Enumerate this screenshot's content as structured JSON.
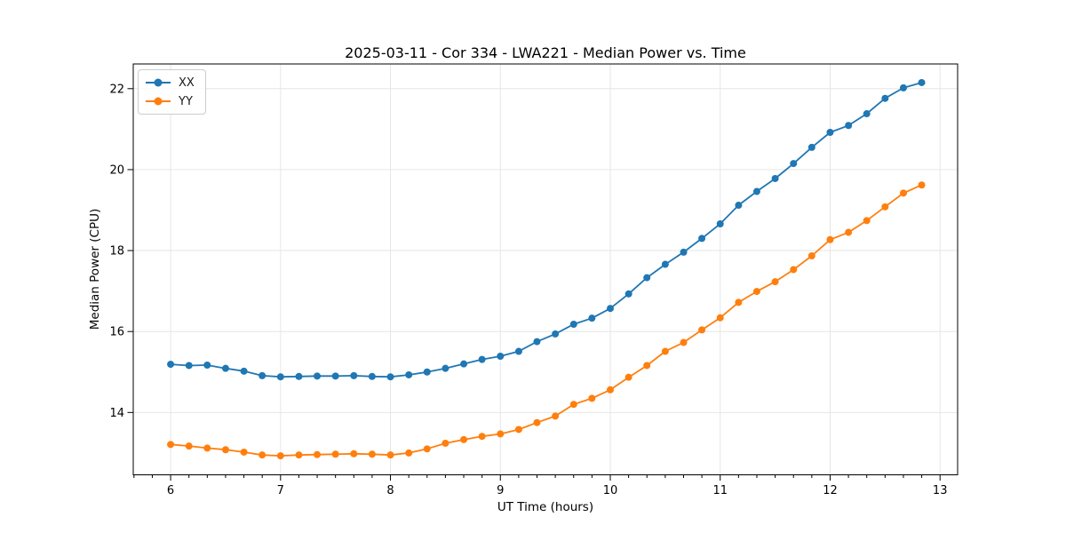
{
  "figure": {
    "title": "2025-03-11 - Cor 334 - LWA221 - Median Power vs. Time"
  },
  "chart_data": {
    "type": "line",
    "title": "2025-03-11 - Cor 334 - LWA221 - Median Power vs. Time",
    "xlabel": "UT Time (hours)",
    "ylabel": "Median Power (CPU)",
    "xlim": [
      5.66,
      13.16
    ],
    "ylim": [
      12.46,
      22.61
    ],
    "x_ticks": [
      6,
      7,
      8,
      9,
      10,
      11,
      12,
      13
    ],
    "y_ticks": [
      14,
      16,
      18,
      20,
      22
    ],
    "x_minor_subdivisions": 6,
    "grid": true,
    "legend_position": "upper-left",
    "grid_color": "#e6e6e6",
    "axis_color": "#000000",
    "x": [
      6.0,
      6.167,
      6.333,
      6.5,
      6.667,
      6.833,
      7.0,
      7.167,
      7.333,
      7.5,
      7.667,
      7.833,
      8.0,
      8.167,
      8.333,
      8.5,
      8.667,
      8.833,
      9.0,
      9.167,
      9.333,
      9.5,
      9.667,
      9.833,
      10.0,
      10.167,
      10.333,
      10.5,
      10.667,
      10.833,
      11.0,
      11.167,
      11.333,
      11.5,
      11.667,
      11.833,
      12.0,
      12.167,
      12.333,
      12.5,
      12.667,
      12.833
    ],
    "series": [
      {
        "name": "XX",
        "color": "#1f77b4",
        "values": [
          15.19,
          15.16,
          15.17,
          15.09,
          15.02,
          14.91,
          14.88,
          14.89,
          14.9,
          14.9,
          14.91,
          14.89,
          14.88,
          14.93,
          15.0,
          15.09,
          15.2,
          15.31,
          15.39,
          15.51,
          15.75,
          15.94,
          16.18,
          16.33,
          16.57,
          16.93,
          17.33,
          17.66,
          17.96,
          18.3,
          18.66,
          19.12,
          19.46,
          19.78,
          20.15,
          20.55,
          20.92,
          21.09,
          21.38,
          21.76,
          22.02,
          22.15
        ]
      },
      {
        "name": "YY",
        "color": "#ff7f0e",
        "values": [
          13.21,
          13.17,
          13.12,
          13.08,
          13.02,
          12.95,
          12.93,
          12.95,
          12.96,
          12.97,
          12.98,
          12.97,
          12.95,
          13.0,
          13.1,
          13.24,
          13.33,
          13.41,
          13.47,
          13.58,
          13.75,
          13.91,
          14.2,
          14.35,
          14.56,
          14.87,
          15.16,
          15.51,
          15.73,
          16.04,
          16.34,
          16.72,
          16.99,
          17.23,
          17.53,
          17.87,
          18.27,
          18.45,
          18.74,
          19.08,
          19.42,
          19.62
        ]
      }
    ]
  }
}
